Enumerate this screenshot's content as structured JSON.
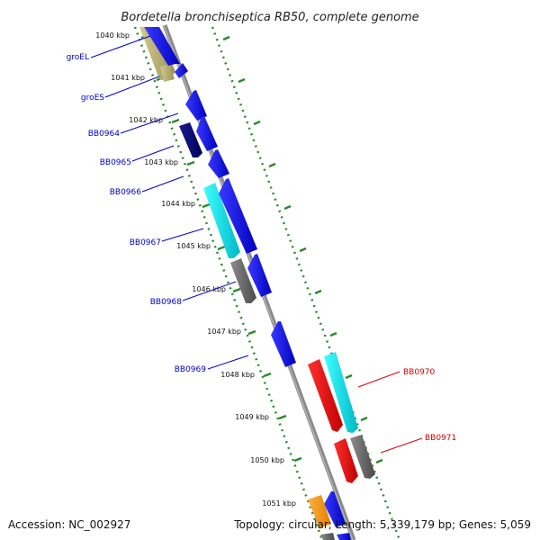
{
  "title": "Bordetella bronchiseptica RB50, complete genome",
  "ticks": [
    "1040 kbp",
    "1041 kbp",
    "1042 kbp",
    "1043 kbp",
    "1044 kbp",
    "1045 kbp",
    "1046 kbp",
    "1047 kbp",
    "1048 kbp",
    "1049 kbp",
    "1050 kbp",
    "1051 kbp"
  ],
  "gene_labels": [
    {
      "name": "groEL",
      "color": "#0000cc"
    },
    {
      "name": "groES",
      "color": "#0000cc"
    },
    {
      "name": "BB0964",
      "color": "#0000cc"
    },
    {
      "name": "BB0965",
      "color": "#0000cc"
    },
    {
      "name": "BB0966",
      "color": "#0000cc"
    },
    {
      "name": "BB0967",
      "color": "#0000cc"
    },
    {
      "name": "BB0968",
      "color": "#0000cc"
    },
    {
      "name": "BB0969",
      "color": "#0000cc"
    },
    {
      "name": "BB0970",
      "color": "#dd0000"
    },
    {
      "name": "BB0971",
      "color": "#dd0000"
    }
  ],
  "colors": {
    "blue": "#0000ee",
    "navy": "#00007a",
    "cyan": "#00e5e5",
    "gray": "#6e6e6e",
    "olive": "#b5ad6a",
    "red": "#ee0000",
    "orange": "#ff9900",
    "backbone": "#8a8a8a",
    "tick_green": "#2a8a2a"
  },
  "footer": {
    "accession": "Accession: NC_002927",
    "summary": "Topology: circular; Length: 5,339,179 bp; Genes: 5,059"
  }
}
